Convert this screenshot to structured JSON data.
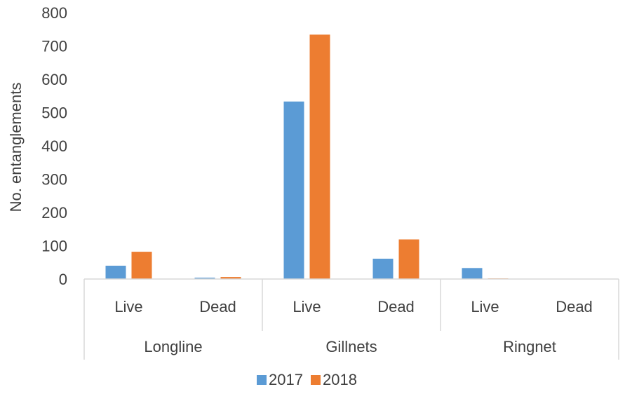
{
  "chart_data": {
    "type": "bar",
    "ylabel": "No. entanglements",
    "ylim": [
      0,
      800
    ],
    "yticks": [
      "0",
      "100",
      "200",
      "300",
      "400",
      "500",
      "600",
      "700",
      "800"
    ],
    "grid": false,
    "legend_position": "bottom",
    "groups": [
      {
        "label": "Longline",
        "categories": [
          "Live",
          "Dead"
        ]
      },
      {
        "label": "Gillnets",
        "categories": [
          "Live",
          "Dead"
        ]
      },
      {
        "label": "Ringnet",
        "categories": [
          "Live",
          "Dead"
        ]
      }
    ],
    "categories": [
      "Longline Live",
      "Longline Dead",
      "Gillnets Live",
      "Gillnets Dead",
      "Ringnet Live",
      "Ringnet Dead"
    ],
    "series": [
      {
        "name": "2017",
        "color": "#5B9BD5",
        "values": [
          40,
          4,
          533,
          61,
          33,
          0
        ]
      },
      {
        "name": "2018",
        "color": "#ED7D31",
        "values": [
          82,
          6,
          734,
          119,
          2,
          0
        ]
      }
    ]
  }
}
